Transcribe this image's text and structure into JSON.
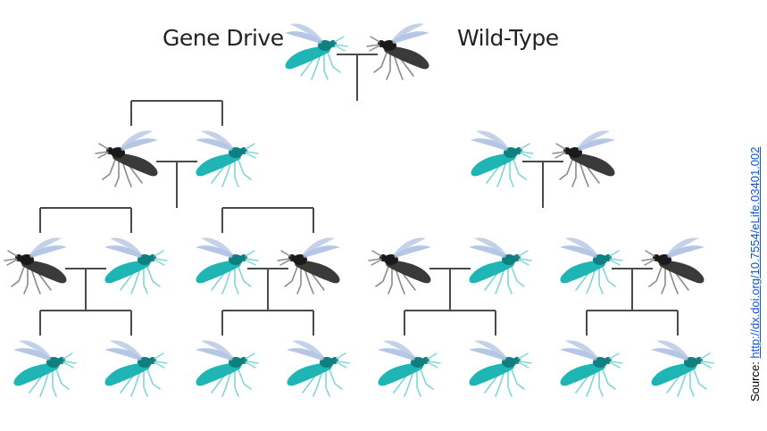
{
  "legend": {
    "gene_drive": "Gene Drive",
    "wild_type": "Wild-Type"
  },
  "source": {
    "prefix": "Source: ",
    "link": "http://dx.doi.org/10.7554/eLife.03401.002"
  },
  "colors": {
    "gene_drive_body": "#1fb5b5",
    "gene_drive_dark": "#0f7f80",
    "wild_type_body": "#3a3a3a",
    "wild_type_dark": "#1a1a1a",
    "wing": "#a9bde0",
    "line": "#4a4a4a",
    "link": "#1155cc"
  },
  "generations": [
    {
      "generation": 1,
      "members": [
        "gene_drive",
        "wild_type"
      ]
    },
    {
      "generation": 2,
      "members": [
        "wild_type",
        "gene_drive",
        "gene_drive",
        "wild_type"
      ]
    },
    {
      "generation": 3,
      "members": [
        "wild_type",
        "gene_drive",
        "gene_drive",
        "wild_type",
        "wild_type",
        "gene_drive",
        "gene_drive",
        "wild_type"
      ]
    },
    {
      "generation": 4,
      "members": [
        "gene_drive",
        "gene_drive",
        "gene_drive",
        "gene_drive",
        "gene_drive",
        "gene_drive",
        "gene_drive",
        "gene_drive"
      ]
    }
  ]
}
